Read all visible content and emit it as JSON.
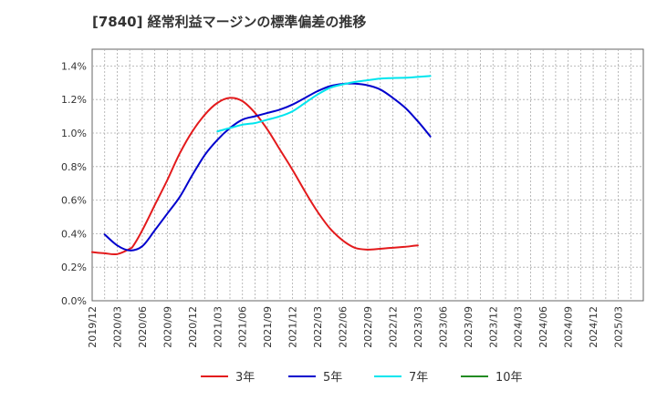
{
  "chart_data": {
    "type": "line",
    "title": "[7840]  経常利益マージンの標準偏差の推移",
    "xlabel": "",
    "ylabel": "",
    "ylim": [
      0,
      1.5
    ],
    "y_ticks": [
      "0.0%",
      "0.2%",
      "0.4%",
      "0.6%",
      "0.8%",
      "1.0%",
      "1.2%",
      "1.4%"
    ],
    "y_tick_values": [
      0,
      0.2,
      0.4,
      0.6,
      0.8,
      1.0,
      1.2,
      1.4
    ],
    "x_ticks": [
      "2019/12",
      "2020/03",
      "2020/06",
      "2020/09",
      "2020/12",
      "2021/03",
      "2021/06",
      "2021/09",
      "2021/12",
      "2022/03",
      "2022/06",
      "2022/09",
      "2022/12",
      "2023/03",
      "2023/06",
      "2023/09",
      "2023/12",
      "2024/03",
      "2024/06",
      "2024/09",
      "2024/12",
      "2025/03"
    ],
    "grid": true,
    "legend_position": "bottom",
    "series": [
      {
        "name": "3年",
        "color": "#e31a1c",
        "points": [
          [
            0,
            0.29
          ],
          [
            1,
            0.283
          ],
          [
            2,
            0.278
          ],
          [
            3,
            0.31
          ],
          [
            3.3,
            0.33
          ],
          [
            4,
            0.42
          ],
          [
            5,
            0.57
          ],
          [
            6,
            0.72
          ],
          [
            7,
            0.88
          ],
          [
            8,
            1.01
          ],
          [
            9,
            1.11
          ],
          [
            10,
            1.18
          ],
          [
            11,
            1.21
          ],
          [
            12,
            1.19
          ],
          [
            13,
            1.12
          ],
          [
            14,
            1.02
          ],
          [
            15,
            0.9
          ],
          [
            16,
            0.78
          ],
          [
            17,
            0.65
          ],
          [
            18,
            0.53
          ],
          [
            19,
            0.43
          ],
          [
            20,
            0.36
          ],
          [
            21,
            0.315
          ],
          [
            22,
            0.305
          ],
          [
            23,
            0.31
          ],
          [
            24,
            0.316
          ],
          [
            25,
            0.322
          ],
          [
            26,
            0.33
          ]
        ]
      },
      {
        "name": "5年",
        "color": "#0000cd",
        "points": [
          [
            1,
            0.395
          ],
          [
            2,
            0.33
          ],
          [
            3,
            0.3
          ],
          [
            4,
            0.325
          ],
          [
            5,
            0.42
          ],
          [
            6,
            0.52
          ],
          [
            7,
            0.62
          ],
          [
            8,
            0.75
          ],
          [
            9,
            0.87
          ],
          [
            10,
            0.96
          ],
          [
            11,
            1.03
          ],
          [
            12,
            1.08
          ],
          [
            13,
            1.1
          ],
          [
            14,
            1.12
          ],
          [
            15,
            1.14
          ],
          [
            16,
            1.17
          ],
          [
            17,
            1.21
          ],
          [
            18,
            1.25
          ],
          [
            19,
            1.28
          ],
          [
            20,
            1.293
          ],
          [
            21,
            1.295
          ],
          [
            22,
            1.285
          ],
          [
            23,
            1.26
          ],
          [
            24,
            1.21
          ],
          [
            25,
            1.15
          ],
          [
            26,
            1.07
          ],
          [
            27,
            0.98
          ]
        ]
      },
      {
        "name": "7年",
        "color": "#00e5ee",
        "points": [
          [
            10,
            1.01
          ],
          [
            11,
            1.03
          ],
          [
            12,
            1.05
          ],
          [
            13,
            1.06
          ],
          [
            14,
            1.08
          ],
          [
            15,
            1.1
          ],
          [
            16,
            1.13
          ],
          [
            17,
            1.18
          ],
          [
            18,
            1.23
          ],
          [
            19,
            1.27
          ],
          [
            20,
            1.29
          ],
          [
            21,
            1.305
          ],
          [
            22,
            1.315
          ],
          [
            23,
            1.325
          ],
          [
            24,
            1.328
          ],
          [
            25,
            1.33
          ],
          [
            26,
            1.335
          ],
          [
            27,
            1.34
          ]
        ]
      },
      {
        "name": "10年",
        "color": "#228b22",
        "points": []
      }
    ]
  }
}
